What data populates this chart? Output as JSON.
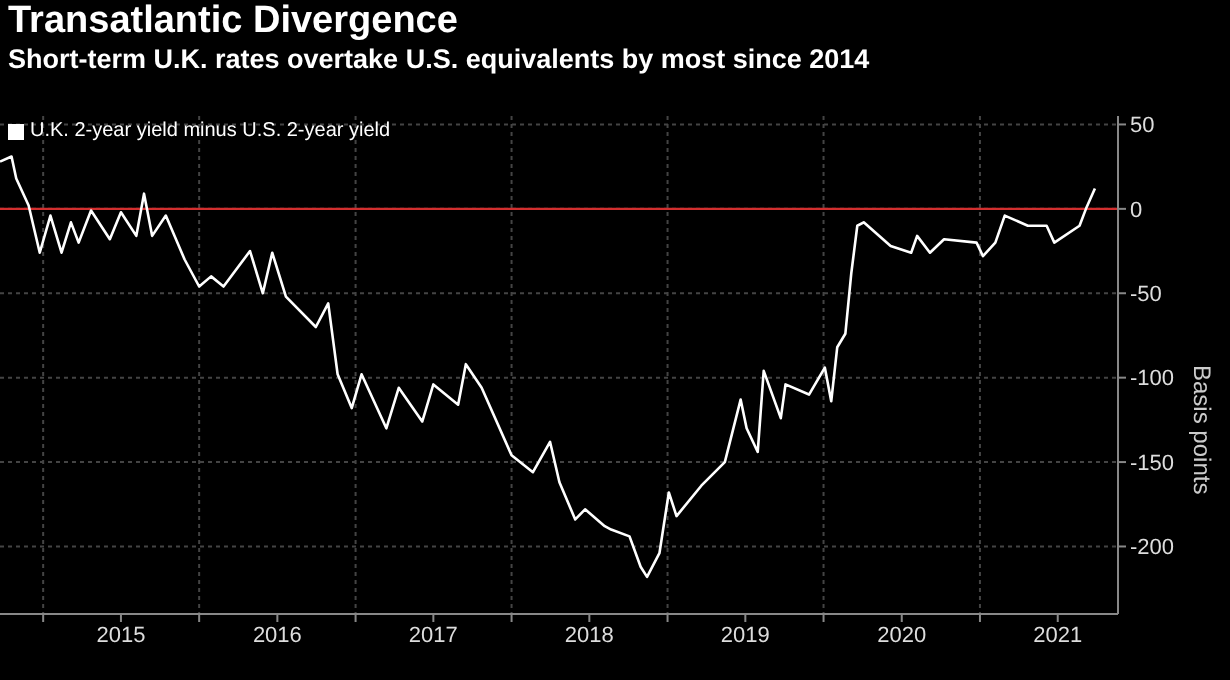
{
  "chart_data": {
    "type": "line",
    "title": "Transatlantic Divergence",
    "subtitle": "Short-term U.K. rates overtake U.S. equivalents by most since 2014",
    "ylabel": "Basis points",
    "x": [
      "2014-09-22",
      "2014-10-19",
      "2014-10-30",
      "2014-11-28",
      "2014-12-24",
      "2015-01-18",
      "2015-02-13",
      "2015-03-07",
      "2015-03-25",
      "2015-04-23",
      "2015-06-06",
      "2015-07-02",
      "2015-08-07",
      "2015-08-25",
      "2015-09-13",
      "2015-10-15",
      "2015-11-28",
      "2016-01-01",
      "2016-01-29",
      "2016-02-27",
      "2016-04-29",
      "2016-05-29",
      "2016-06-20",
      "2016-07-22",
      "2016-09-30",
      "2016-10-29",
      "2016-11-20",
      "2016-12-23",
      "2017-01-15",
      "2017-03-14",
      "2017-04-12",
      "2017-06-06",
      "2017-07-02",
      "2017-08-29",
      "2017-09-16",
      "2017-10-23",
      "2018-01-01",
      "2018-02-20",
      "2018-04-01",
      "2018-04-23",
      "2018-05-30",
      "2018-06-22",
      "2018-08-07",
      "2018-08-22",
      "2018-10-04",
      "2018-10-30",
      "2018-11-14",
      "2018-12-13",
      "2019-01-04",
      "2019-01-22",
      "2019-03-21",
      "2019-05-15",
      "2019-06-21",
      "2019-07-05",
      "2019-07-31",
      "2019-08-14",
      "2019-09-23",
      "2019-10-04",
      "2019-11-28",
      "2020-01-04",
      "2020-01-19",
      "2020-02-02",
      "2020-02-21",
      "2020-03-06",
      "2020-03-20",
      "2020-04-04",
      "2020-06-06",
      "2020-07-24",
      "2020-08-07",
      "2020-09-06",
      "2020-10-09",
      "2020-12-24",
      "2021-01-08",
      "2021-02-06",
      "2021-02-28",
      "2021-04-23",
      "2021-06-06",
      "2021-06-24",
      "2021-08-22",
      "2021-09-06",
      "2021-09-27"
    ],
    "series": [
      {
        "name": "U.K. 2-year yield minus U.S. 2-year yield",
        "color": "#ffffff",
        "values": [
          28,
          31,
          18,
          2,
          -26,
          -4,
          -26,
          -8,
          -20,
          -1,
          -18,
          -2,
          -16,
          9,
          -16,
          -4,
          -30,
          -46,
          -40,
          -46,
          -25,
          -50,
          -26,
          -52,
          -70,
          -56,
          -98,
          -118,
          -98,
          -130,
          -106,
          -126,
          -104,
          -116,
          -92,
          -106,
          -146,
          -156,
          -138,
          -162,
          -184,
          -178,
          -188,
          -190,
          -194,
          -212,
          -218,
          -204,
          -168,
          -182,
          -164,
          -150,
          -113,
          -130,
          -144,
          -96,
          -124,
          -104,
          -110,
          -94,
          -114,
          -82,
          -74,
          -38,
          -10,
          -8,
          -22,
          -26,
          -16,
          -26,
          -18,
          -20,
          -28,
          -20,
          -4,
          -10,
          -10,
          -20,
          -10,
          0,
          12
        ]
      }
    ],
    "xlim": [
      "2014-09-22",
      "2021-11-20"
    ],
    "xticks": [
      {
        "value": "2015-01-01",
        "label": null
      },
      {
        "value": "2015-07-02",
        "label": "2015"
      },
      {
        "value": "2016-01-01",
        "label": null
      },
      {
        "value": "2016-07-02",
        "label": "2016"
      },
      {
        "value": "2017-01-01",
        "label": null
      },
      {
        "value": "2017-07-02",
        "label": "2017"
      },
      {
        "value": "2018-01-01",
        "label": null
      },
      {
        "value": "2018-07-02",
        "label": "2018"
      },
      {
        "value": "2019-01-01",
        "label": null
      },
      {
        "value": "2019-07-02",
        "label": "2019"
      },
      {
        "value": "2020-01-01",
        "label": null
      },
      {
        "value": "2020-07-02",
        "label": "2020"
      },
      {
        "value": "2021-01-01",
        "label": null
      },
      {
        "value": "2021-07-02",
        "label": "2021"
      }
    ],
    "ylim": [
      -240,
      55
    ],
    "yticks": [
      -200,
      -150,
      -100,
      -50,
      0,
      50
    ],
    "ref_lines": [
      {
        "axis": "y",
        "value": 0,
        "color": "#d32f2f"
      }
    ],
    "grid": true,
    "legend": "top left",
    "marker": "none",
    "line_style": "solid"
  }
}
